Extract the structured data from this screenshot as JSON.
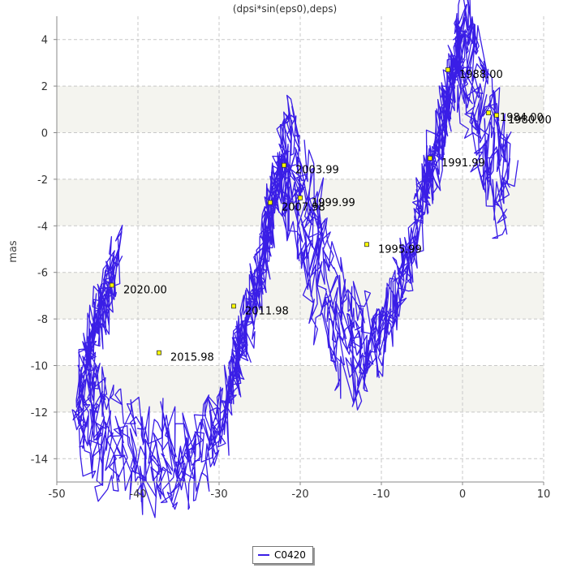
{
  "chart_data": {
    "type": "line",
    "title": "(dpsi*sin(eps0),deps)",
    "xlabel": "",
    "ylabel": "mas",
    "xlim": [
      -50,
      10
    ],
    "ylim": [
      -15,
      5
    ],
    "xticks": [
      -50,
      -40,
      -30,
      -20,
      -10,
      0,
      10
    ],
    "yticks": [
      -14,
      -12,
      -10,
      -8,
      -6,
      -4,
      -2,
      0,
      2,
      4
    ],
    "grid": true,
    "legend_position": "bottom-center",
    "series": [
      {
        "name": "C0420",
        "color": "#3a1ee6",
        "points": [
          [
            -43,
            -6.2
          ],
          [
            -44,
            -7.0
          ],
          [
            -45.5,
            -8.4
          ],
          [
            -47,
            -10.6
          ],
          [
            -46,
            -12.0
          ],
          [
            -44,
            -13.2
          ],
          [
            -41,
            -13.5
          ],
          [
            -38,
            -14.0
          ],
          [
            -35,
            -14.4
          ],
          [
            -32,
            -13.6
          ],
          [
            -29,
            -11.8
          ],
          [
            -27.5,
            -9.5
          ],
          [
            -26.5,
            -8.0
          ],
          [
            -25,
            -6.2
          ],
          [
            -24,
            -4.2
          ],
          [
            -23,
            -2.2
          ],
          [
            -22,
            -0.4
          ],
          [
            -21,
            -2.0
          ],
          [
            -19.5,
            -3.5
          ],
          [
            -18,
            -5.2
          ],
          [
            -16,
            -7.6
          ],
          [
            -14,
            -8.8
          ],
          [
            -12,
            -9.6
          ],
          [
            -10,
            -8.6
          ],
          [
            -8,
            -7.0
          ],
          [
            -6,
            -4.8
          ],
          [
            -4.5,
            -2.2
          ],
          [
            -3,
            -0.6
          ],
          [
            -2,
            1.4
          ],
          [
            -1,
            3.0
          ],
          [
            0,
            4.3
          ],
          [
            1,
            2.6
          ],
          [
            2.5,
            0.6
          ],
          [
            4,
            -1.0
          ],
          [
            5.5,
            -3.0
          ]
        ]
      }
    ],
    "epoch_markers": [
      {
        "label": "1988.00",
        "x": -1.8,
        "y": 2.7
      },
      {
        "label": "1984.00",
        "x": 3.2,
        "y": 0.85
      },
      {
        "label": "1980.00",
        "x": 4.2,
        "y": 0.75
      },
      {
        "label": "1991.99",
        "x": -4.0,
        "y": -1.1
      },
      {
        "label": "1995.99",
        "x": -11.8,
        "y": -4.8
      },
      {
        "label": "1999.99",
        "x": -20.0,
        "y": -2.8
      },
      {
        "label": "2003.99",
        "x": -22.0,
        "y": -1.4
      },
      {
        "label": "2007.98",
        "x": -23.7,
        "y": -3.0
      },
      {
        "label": "2011.98",
        "x": -28.2,
        "y": -7.45
      },
      {
        "label": "2015.98",
        "x": -37.4,
        "y": -9.45
      },
      {
        "label": "2020.00",
        "x": -43.2,
        "y": -6.55
      }
    ],
    "band_color": "#f4f4ef",
    "grid_color": "#c8c8c8",
    "marker_fill": "#ffff00"
  }
}
